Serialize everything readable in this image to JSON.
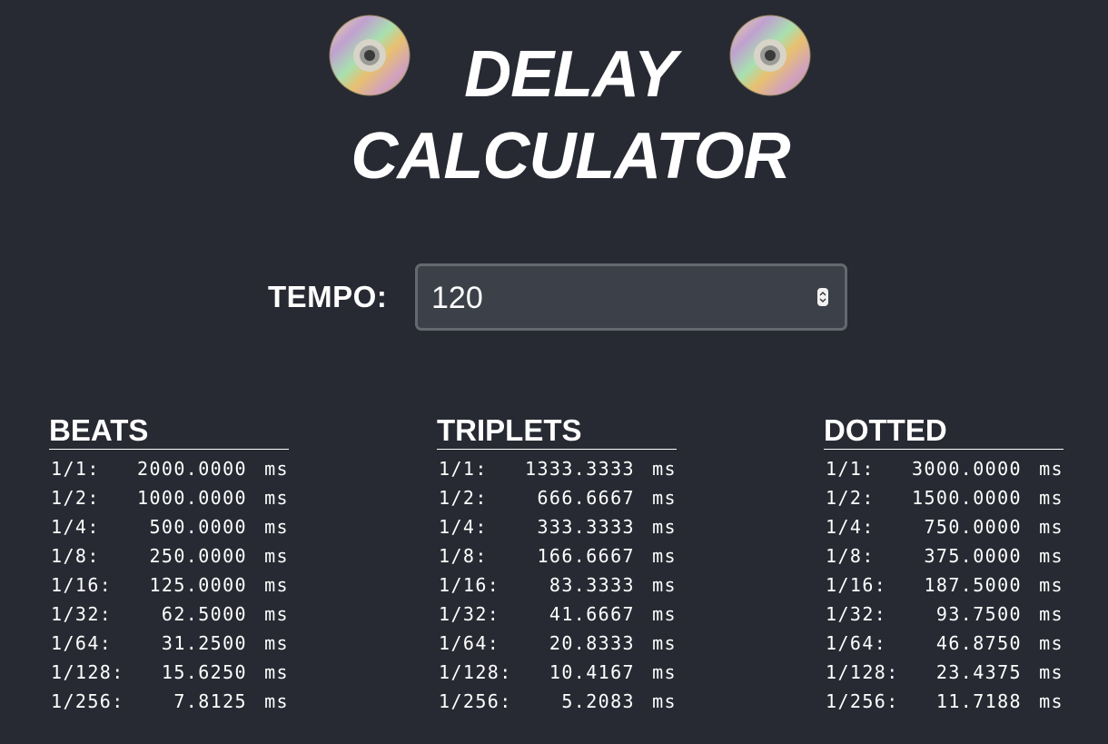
{
  "title": {
    "line1": "DELAY",
    "line2": "CALCULATOR",
    "left_icon": "disc-icon",
    "right_icon": "disc-icon"
  },
  "tempo": {
    "label": "TEMPO:",
    "value": "120"
  },
  "unit": "ms",
  "columns": [
    {
      "heading": "BEATS",
      "rows": [
        {
          "division": "1/1:",
          "value": "2000.0000"
        },
        {
          "division": "1/2:",
          "value": "1000.0000"
        },
        {
          "division": "1/4:",
          "value": "500.0000"
        },
        {
          "division": "1/8:",
          "value": "250.0000"
        },
        {
          "division": "1/16:",
          "value": "125.0000"
        },
        {
          "division": "1/32:",
          "value": "62.5000"
        },
        {
          "division": "1/64:",
          "value": "31.2500"
        },
        {
          "division": "1/128:",
          "value": "15.6250"
        },
        {
          "division": "1/256:",
          "value": "7.8125"
        }
      ]
    },
    {
      "heading": "TRIPLETS",
      "rows": [
        {
          "division": "1/1:",
          "value": "1333.3333"
        },
        {
          "division": "1/2:",
          "value": "666.6667"
        },
        {
          "division": "1/4:",
          "value": "333.3333"
        },
        {
          "division": "1/8:",
          "value": "166.6667"
        },
        {
          "division": "1/16:",
          "value": "83.3333"
        },
        {
          "division": "1/32:",
          "value": "41.6667"
        },
        {
          "division": "1/64:",
          "value": "20.8333"
        },
        {
          "division": "1/128:",
          "value": "10.4167"
        },
        {
          "division": "1/256:",
          "value": "5.2083"
        }
      ]
    },
    {
      "heading": "DOTTED",
      "rows": [
        {
          "division": "1/1:",
          "value": "3000.0000"
        },
        {
          "division": "1/2:",
          "value": "1500.0000"
        },
        {
          "division": "1/4:",
          "value": "750.0000"
        },
        {
          "division": "1/8:",
          "value": "375.0000"
        },
        {
          "division": "1/16:",
          "value": "187.5000"
        },
        {
          "division": "1/32:",
          "value": "93.7500"
        },
        {
          "division": "1/64:",
          "value": "46.8750"
        },
        {
          "division": "1/128:",
          "value": "23.4375"
        },
        {
          "division": "1/256:",
          "value": "11.7188"
        }
      ]
    }
  ]
}
